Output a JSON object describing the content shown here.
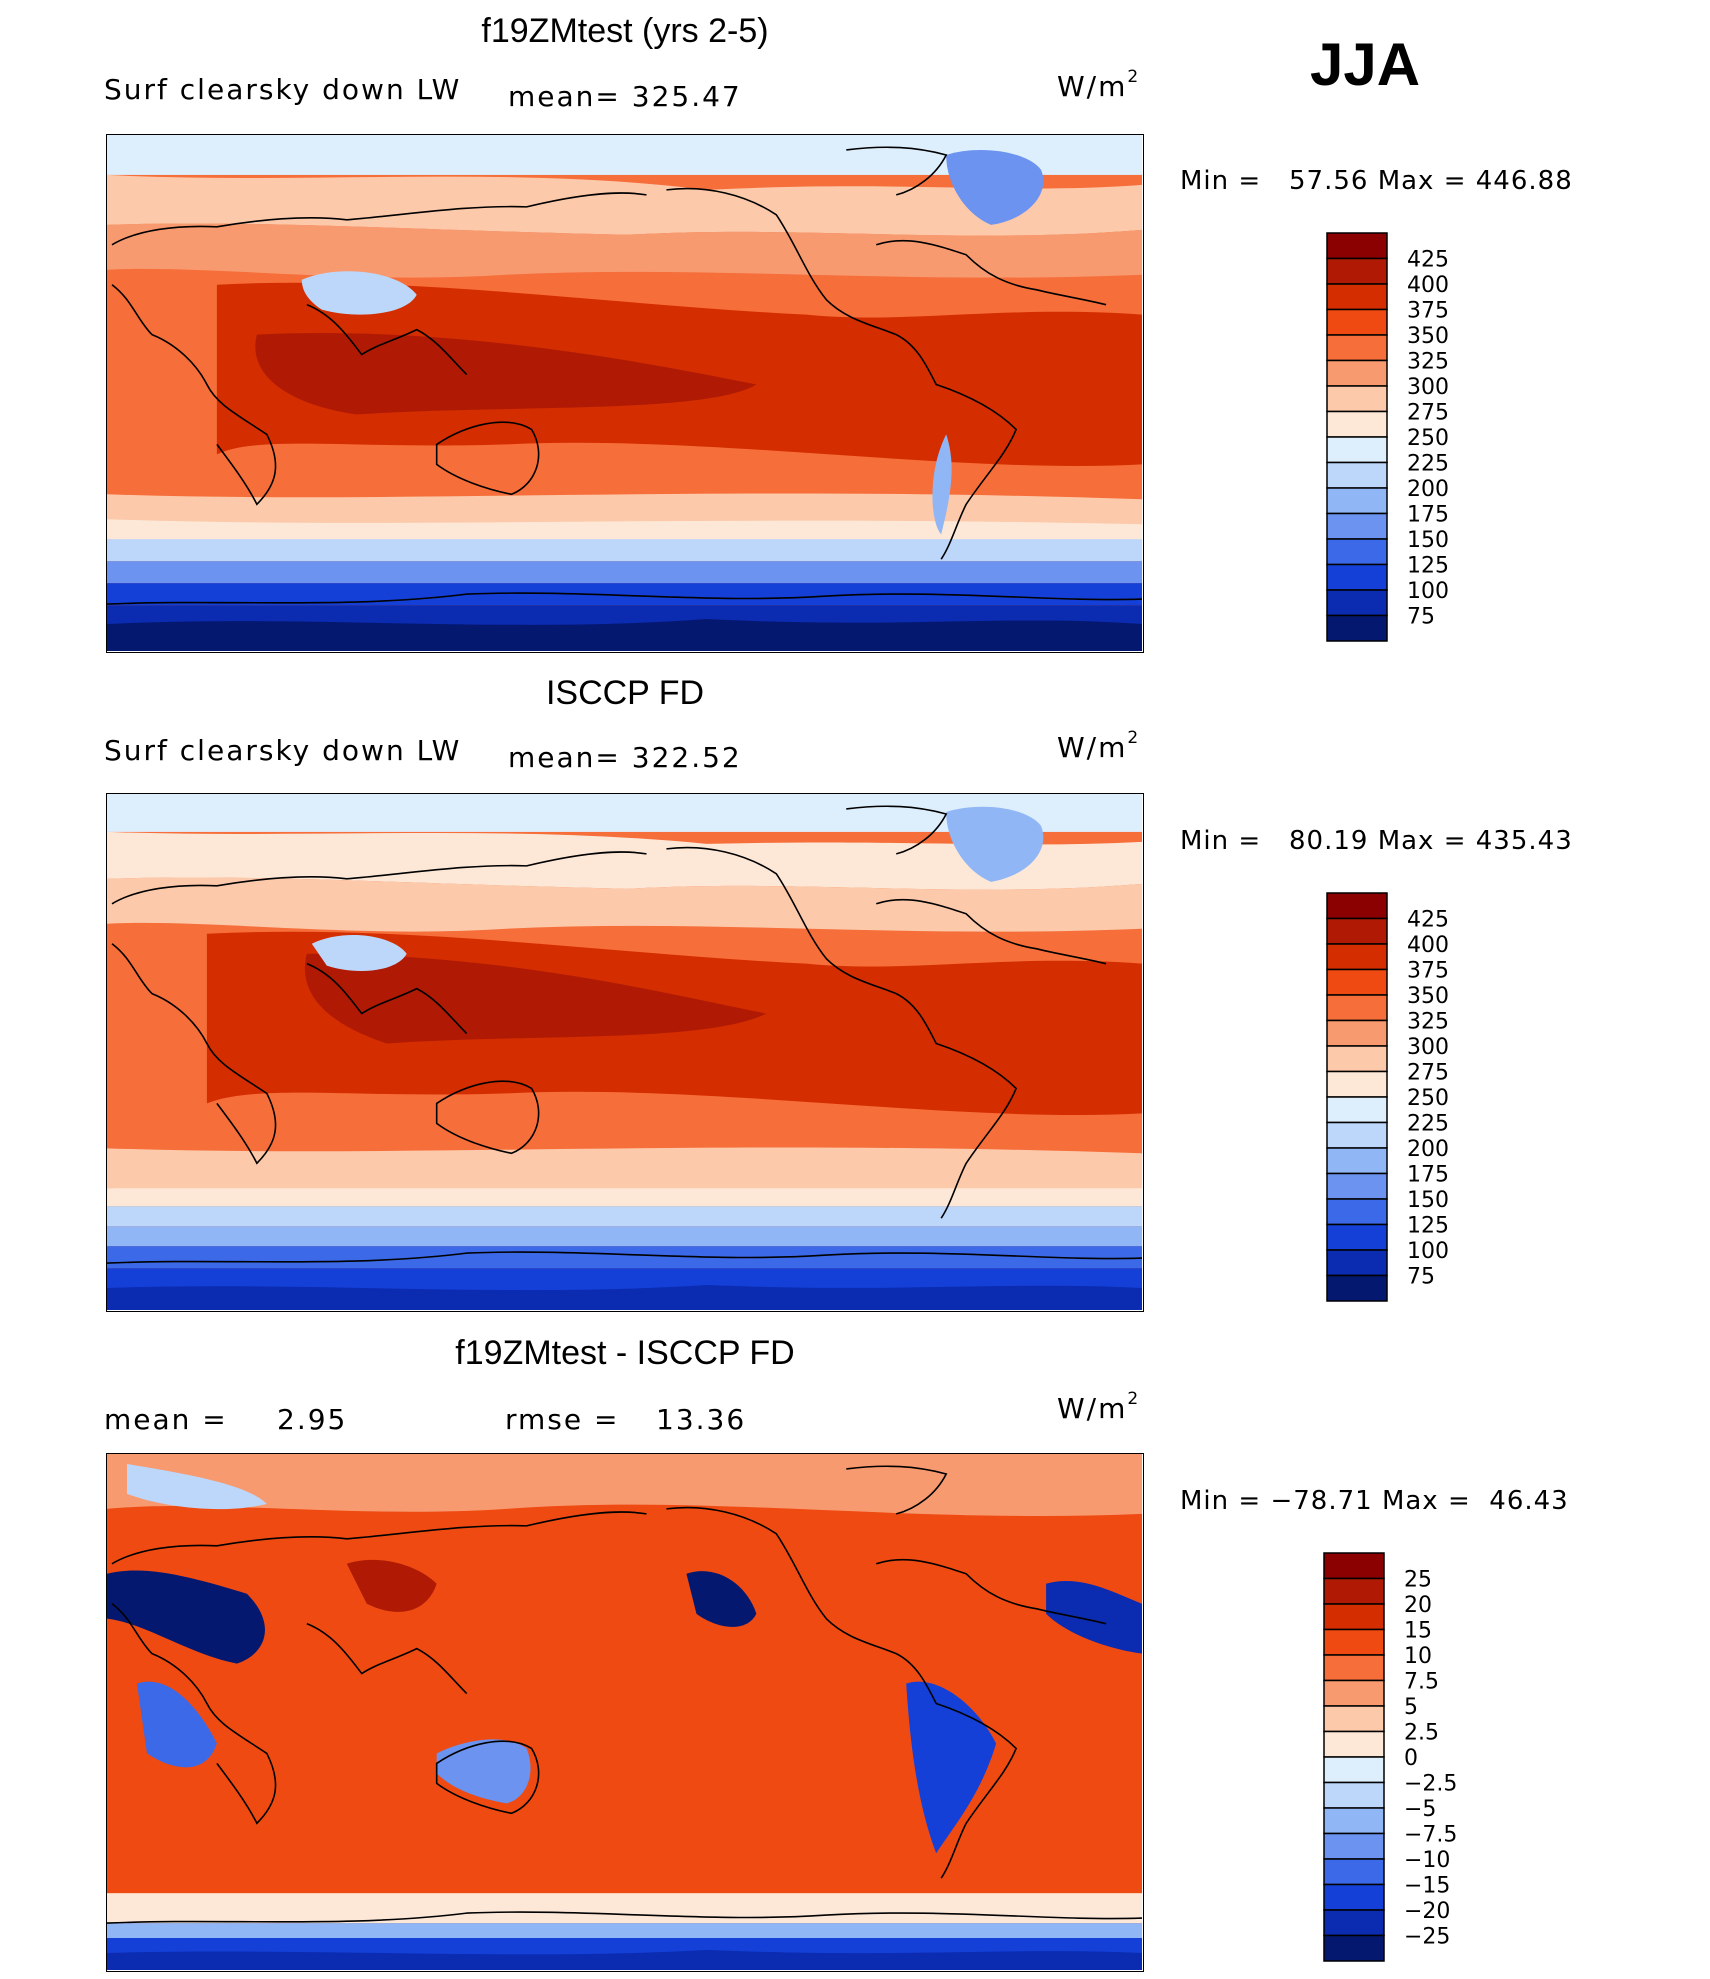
{
  "season": "JJA",
  "units_prefix": "W/m",
  "units_exp": "2",
  "chart_data": [
    {
      "type": "heatmap",
      "title": "f19ZMtest (yrs 2-5)",
      "subtitle": "Surf clearsky down LW",
      "mean_text": "mean= 325.47",
      "min_label": "Min =",
      "min_value": "57.56",
      "max_label": "Max =",
      "max_value": "446.88",
      "colorbar": {
        "levels": [
          "425",
          "400",
          "375",
          "350",
          "325",
          "300",
          "275",
          "250",
          "225",
          "200",
          "175",
          "150",
          "125",
          "100",
          "75"
        ],
        "colors": [
          "#8b0000",
          "#b01a04",
          "#d42d00",
          "#ef4a12",
          "#f66e3a",
          "#f89a70",
          "#fcc9aa",
          "#fde8d8",
          "#ddeefc",
          "#bcd7fa",
          "#90b6f5",
          "#6b93ef",
          "#3c69e8",
          "#1440d8",
          "#0b2bb0",
          "#051870"
        ]
      }
    },
    {
      "type": "heatmap",
      "title": "ISCCP FD",
      "subtitle": "Surf clearsky down LW",
      "mean_text": "mean= 322.52",
      "min_label": "Min =",
      "min_value": "80.19",
      "max_label": "Max =",
      "max_value": "435.43",
      "colorbar": {
        "levels": [
          "425",
          "400",
          "375",
          "350",
          "325",
          "300",
          "275",
          "250",
          "225",
          "200",
          "175",
          "150",
          "125",
          "100",
          "75"
        ],
        "colors": [
          "#8b0000",
          "#b01a04",
          "#d42d00",
          "#ef4a12",
          "#f66e3a",
          "#f89a70",
          "#fcc9aa",
          "#fde8d8",
          "#ddeefc",
          "#bcd7fa",
          "#90b6f5",
          "#6b93ef",
          "#3c69e8",
          "#1440d8",
          "#0b2bb0",
          "#051870"
        ]
      }
    },
    {
      "type": "heatmap",
      "title": "f19ZMtest - ISCCP FD",
      "mean_label": "mean =",
      "mean_value": "2.95",
      "rmse_label": "rmse =",
      "rmse_value": "13.36",
      "min_label": "Min =",
      "min_value": "−78.71",
      "max_label": "Max =",
      "max_value": "46.43",
      "colorbar": {
        "levels": [
          "25",
          "20",
          "15",
          "10",
          "7.5",
          "5",
          "2.5",
          "0",
          "−2.5",
          "−5",
          "−7.5",
          "−10",
          "−15",
          "−20",
          "−25"
        ],
        "colors": [
          "#8b0000",
          "#b01a04",
          "#d42d00",
          "#ef4a12",
          "#f66e3a",
          "#f89a70",
          "#fcc9aa",
          "#fde8d8",
          "#ddeefc",
          "#bcd7fa",
          "#90b6f5",
          "#6b93ef",
          "#3c69e8",
          "#1440d8",
          "#0b2bb0",
          "#051870"
        ]
      }
    }
  ]
}
